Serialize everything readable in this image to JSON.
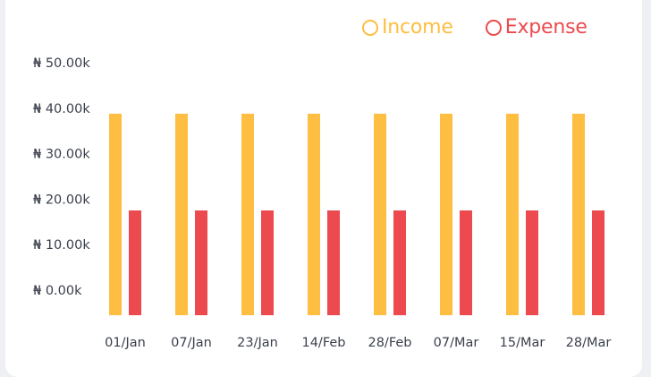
{
  "colors": {
    "income": "#FDBE42",
    "expense": "#EC4A4F",
    "text": "#3a3f4b",
    "card": "#ffffff",
    "background": "#eef0f3"
  },
  "chart_data": {
    "type": "bar",
    "categories": [
      "01/Jan",
      "07/Jan",
      "23/Jan",
      "14/Feb",
      "28/Feb",
      "07/Mar",
      "15/Mar",
      "28/Mar"
    ],
    "series": [
      {
        "name": "Income",
        "values": [
          37500,
          37500,
          37500,
          37500,
          37500,
          37500,
          37500,
          37500
        ]
      },
      {
        "name": "Expense",
        "values": [
          19500,
          19500,
          19500,
          19500,
          19500,
          19500,
          19500,
          19500
        ]
      }
    ],
    "y_ticks": [
      "₦ 0.00k",
      "₦ 10.00k",
      "₦ 20.00k",
      "₦ 30.00k",
      "₦ 40.00k",
      "₦ 50.00k"
    ],
    "ylim": [
      0,
      50000
    ],
    "legend": "top-right",
    "grid": false,
    "title": "",
    "xlabel": "",
    "ylabel": ""
  }
}
